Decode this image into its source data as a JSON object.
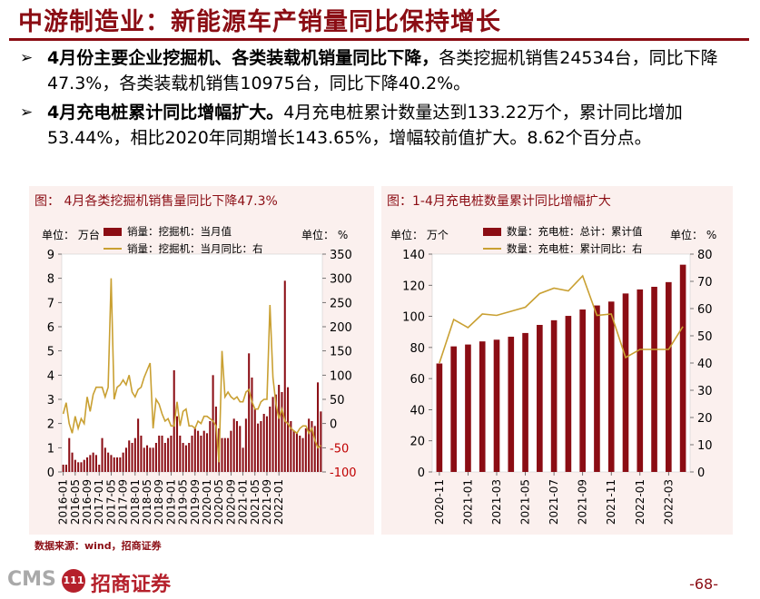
{
  "slide": {
    "title": "中游制造业：新能源车产销量同比保持增长",
    "bullets": [
      {
        "bold": "4月份主要企业挖掘机、各类装载机销量同比下降，",
        "text": "各类挖掘机销售24534台，同比下降47.3%，各类装载机销售10975台，同比下降40.2%。"
      },
      {
        "bold": "4月充电桩累计同比增幅扩大。",
        "text": "4月充电桩累计数量达到133.22万个，累计同比增加53.44%，相比2020年同期增长143.65%，增幅较前值扩大。8.62个百分点。"
      }
    ],
    "arrow_glyph": "➢",
    "source": "数据来源：wind，招商证券",
    "logo_cms": "CMS",
    "logo_mark": "111",
    "logo_cn": "招商证券",
    "page_number": "-68-"
  },
  "colors": {
    "bar": "#8b0d14",
    "line": "#c9a032",
    "accent": "#8b0d14",
    "panel": "#fbf0ee"
  },
  "chart_data": [
    {
      "type": "bar",
      "title": "图：  4月各类挖掘机销售量同比下降47.3%",
      "left_unit": "单位：  万台",
      "right_unit": "单位：  %",
      "ylim": [
        0,
        9
      ],
      "y2lim": [
        -100,
        350
      ],
      "yticks": [
        "0",
        "1",
        "2",
        "3",
        "4",
        "5",
        "6",
        "7",
        "8",
        "9"
      ],
      "y2ticks": [
        "-100",
        "-50",
        "0",
        "50",
        "100",
        "150",
        "200",
        "250",
        "300",
        "350"
      ],
      "xtick_labels": [
        "2016-01",
        "2016-05",
        "2016-09",
        "2017-01",
        "2017-05",
        "2017-09",
        "2018-01",
        "2018-05",
        "2018-09",
        "2019-01",
        "2019-05",
        "2019-09",
        "2020-01",
        "2020-05",
        "2020-09",
        "2021-01",
        "2021-05",
        "2021-09",
        "2022-01"
      ],
      "series": [
        {
          "name": "销量：挖掘机：当月值",
          "kind": "bar",
          "axis": "left",
          "values": [
            0.3,
            0.3,
            1.4,
            0.8,
            0.5,
            0.4,
            0.4,
            0.5,
            0.6,
            0.7,
            0.8,
            0.7,
            0.3,
            1.4,
            1.0,
            0.8,
            0.7,
            0.6,
            0.6,
            0.6,
            0.8,
            1.0,
            1.3,
            1.2,
            1.4,
            2.2,
            1.5,
            1.0,
            1.1,
            1.0,
            1.0,
            1.2,
            1.5,
            1.5,
            1.2,
            1.4,
            1.5,
            4.2,
            2.3,
            1.5,
            1.2,
            1.1,
            1.2,
            1.5,
            1.8,
            1.7,
            1.5,
            1.7,
            1.6,
            2.1,
            4.0,
            2.7,
            1.8,
            1.4,
            1.4,
            1.4,
            1.7,
            2.2,
            2.1,
            1.9,
            1.0,
            2.2,
            4.9,
            3.9,
            2.6,
            2.0,
            2.1,
            2.4,
            2.3,
            2.7,
            3.1,
            3.2,
            3.6,
            3.3,
            7.9,
            3.5,
            2.1,
            1.7,
            1.6,
            1.5,
            1.4,
            1.8,
            2.2,
            2.1,
            1.9,
            3.7,
            2.5
          ]
        },
        {
          "name": "销量：挖掘机：当月同比：右",
          "kind": "line",
          "axis": "right",
          "values": [
            20,
            43,
            0,
            -20,
            15,
            -10,
            10,
            0,
            55,
            25,
            60,
            75,
            75,
            75,
            55,
            75,
            300,
            50,
            75,
            80,
            90,
            80,
            100,
            65,
            55,
            70,
            75,
            95,
            110,
            125,
            -10,
            50,
            40,
            20,
            5,
            10,
            -5,
            -5,
            45,
            -5,
            25,
            30,
            -5,
            -5,
            -10,
            5,
            0,
            15,
            15,
            10,
            5,
            -5,
            -80,
            150,
            55,
            65,
            55,
            50,
            55,
            45,
            45,
            65,
            70,
            45,
            30,
            30,
            45,
            50,
            50,
            245,
            95,
            40,
            10,
            30,
            5,
            0,
            -10,
            -15,
            -20,
            -10,
            -5,
            -5,
            -20,
            -10,
            -35,
            -50,
            -45
          ]
        }
      ]
    },
    {
      "type": "bar",
      "title": "图：1-4月充电桩数量累计同比增幅扩大",
      "left_unit": "单位：  万个",
      "right_unit": "单位：  %",
      "ylim": [
        0,
        140
      ],
      "y2lim": [
        0,
        80
      ],
      "yticks": [
        "0",
        "20",
        "40",
        "60",
        "80",
        "100",
        "120",
        "140"
      ],
      "y2ticks": [
        "0",
        "10",
        "20",
        "30",
        "40",
        "50",
        "60",
        "70",
        "80"
      ],
      "categories": [
        "2020-11",
        "2020-12",
        "2021-01",
        "2021-02",
        "2021-03",
        "2021-04",
        "2021-05",
        "2021-06",
        "2021-07",
        "2021-08",
        "2021-09",
        "2021-10",
        "2021-11",
        "2021-12",
        "2022-01",
        "2022-02",
        "2022-03",
        "2022-04"
      ],
      "xtick_labels": [
        "2020-11",
        "2021-01",
        "2021-03",
        "2021-05",
        "2021-07",
        "2021-09",
        "2021-11",
        "2022-01",
        "2022-03"
      ],
      "series": [
        {
          "name": "数量：充电桩：总计：累计值",
          "kind": "bar",
          "axis": "left",
          "values": [
            69.7,
            80.7,
            81.9,
            83.9,
            85.0,
            86.9,
            89.3,
            94.5,
            97.5,
            100.3,
            104.4,
            107.0,
            109.5,
            114.7,
            117.3,
            119.0,
            122.0,
            133.2
          ]
        },
        {
          "name": "数量：充电桩：累计同比：右",
          "kind": "line",
          "axis": "right",
          "values": [
            40,
            56,
            53,
            58,
            57.5,
            59,
            60.5,
            65.5,
            67.5,
            66.5,
            72,
            57.5,
            58,
            42,
            45,
            45,
            45,
            53.4
          ]
        }
      ]
    }
  ]
}
